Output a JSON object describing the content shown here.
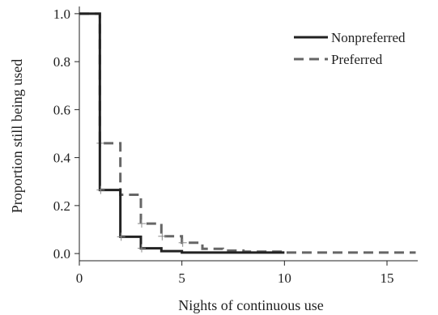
{
  "chart_data": {
    "type": "line",
    "subtype": "kaplan-meier step",
    "xlabel": "Nights of continuous use",
    "ylabel": "Proportion still being used",
    "xlim": [
      0,
      16.5
    ],
    "ylim": [
      -0.03,
      1.03
    ],
    "xticks": [
      0,
      5,
      10,
      15
    ],
    "yticks": [
      0.0,
      0.2,
      0.4,
      0.6,
      0.8,
      1.0
    ],
    "ytick_labels": [
      "0.0",
      "0.2",
      "0.4",
      "0.6",
      "0.8",
      "1.0"
    ],
    "grid": false,
    "legend_position": "top-right",
    "series": [
      {
        "name": "Nonpreferred",
        "style": "solid",
        "color": "#222222",
        "steps": [
          [
            0,
            1.0
          ],
          [
            1,
            0.265
          ],
          [
            2,
            0.07
          ],
          [
            3,
            0.022
          ],
          [
            4,
            0.01
          ],
          [
            5,
            0.004
          ],
          [
            10,
            0.004
          ]
        ],
        "censor_marks": [
          [
            1,
            0.265
          ],
          [
            2,
            0.07
          ],
          [
            3,
            0.022
          ]
        ]
      },
      {
        "name": "Preferred",
        "style": "dashed",
        "color": "#666666",
        "steps": [
          [
            0,
            1.0
          ],
          [
            1,
            0.46
          ],
          [
            2,
            0.245
          ],
          [
            3,
            0.125
          ],
          [
            4,
            0.072
          ],
          [
            5,
            0.045
          ],
          [
            6,
            0.02
          ],
          [
            7,
            0.012
          ],
          [
            8,
            0.008
          ],
          [
            10,
            0.004
          ],
          [
            16.4,
            0.004
          ]
        ],
        "censor_marks": [
          [
            1,
            0.46
          ],
          [
            3,
            0.125
          ],
          [
            4,
            0.072
          ],
          [
            5,
            0.045
          ]
        ]
      }
    ]
  }
}
